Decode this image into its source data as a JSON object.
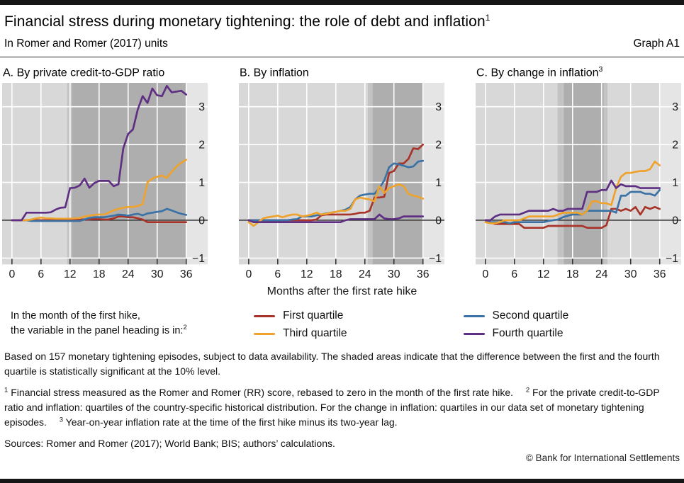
{
  "header": {
    "title": "Financial stress during monetary tightening: the role of debt and inflation",
    "title_sup": "1",
    "subtitle": "In Romer and Romer (2017) units",
    "graph_label": "Graph A1"
  },
  "colors": {
    "red": "#a83429",
    "blue": "#3a72a6",
    "orange": "#efa22c",
    "purple": "#5e2f82",
    "plot_bg": "#d8d8d8",
    "strip_bg": "#e5e5e5",
    "shade_dark": "#aeaeae",
    "shade_light": "#c3c3c3",
    "grid": "#ffffff",
    "axis": "#1a1a1a",
    "tick": "#333333",
    "text": "#1a1a1a"
  },
  "x_axis_label": "Months after the first rate hike",
  "legend": {
    "note_line1": "In the month of the first hike,",
    "note_line2": "the variable in the panel heading is in:",
    "note_sup": "2",
    "items": [
      {
        "label": "First quartile",
        "color": "red"
      },
      {
        "label": "Third quartile",
        "color": "orange"
      },
      {
        "label": "Second quartile",
        "color": "blue"
      },
      {
        "label": "Fourth quartile",
        "color": "purple"
      }
    ]
  },
  "notes": {
    "base": "Based on 157 monetary tightening episodes, subject to data availability. The shaded areas indicate that the difference between the first and the fourth quartile is statistically significant at the 10% level.",
    "fn1_sup": "1",
    "fn1_text": "Financial stress measured as the Romer and Romer (RR) score, rebased to zero in the month of the first rate hike.",
    "fn2_sup": "2",
    "fn2_text": "For the private credit-to-GDP ratio and inflation: quartiles of the country-specific historical distribution. For the change in inflation: quartiles in our data set of monetary tightening episodes.",
    "fn3_sup": "3",
    "fn3_text": "Year-on-year inflation rate at the time of the first hike minus its two-year lag.",
    "sources": "Sources: Romer and Romer (2017); World Bank; BIS; authors’ calculations.",
    "copyright": "© Bank for International Settlements"
  },
  "chart_data": [
    {
      "type": "line",
      "title": "A. By private credit-to-GDP ratio",
      "title_sup": "",
      "x_start": 0,
      "x_end": 36,
      "x_ticks": [
        0,
        6,
        12,
        18,
        24,
        30,
        36
      ],
      "ylim": [
        -1.15,
        3.65
      ],
      "yticks": [
        -1,
        0,
        1,
        2,
        3
      ],
      "ytick_labels": [
        "−1",
        "0",
        "1",
        "2",
        "3"
      ],
      "grid": true,
      "shade_bands": [
        {
          "from": 11.4,
          "to": 12.4,
          "tone": "light"
        },
        {
          "from": 12.4,
          "to": 36,
          "tone": "dark"
        }
      ],
      "series": [
        {
          "name": "First quartile",
          "color": "red",
          "values": [
            0,
            0,
            0,
            0,
            0,
            0,
            0,
            0,
            0,
            0,
            0,
            0,
            0,
            0,
            0.02,
            0.02,
            0.02,
            0.03,
            0.03,
            0.02,
            0.02,
            0.05,
            0.1,
            0.1,
            0.08,
            0.08,
            0.05,
            0.02,
            -0.05,
            -0.05,
            -0.05,
            -0.05,
            -0.05,
            -0.05,
            -0.05,
            -0.05,
            -0.05
          ]
        },
        {
          "name": "Second quartile",
          "color": "blue",
          "values": [
            0,
            0,
            0,
            0,
            -0.02,
            -0.02,
            -0.02,
            -0.02,
            -0.02,
            -0.02,
            -0.02,
            -0.02,
            -0.02,
            -0.02,
            -0.02,
            0.02,
            0.06,
            0.08,
            0.08,
            0.08,
            0.1,
            0.12,
            0.15,
            0.14,
            0.12,
            0.15,
            0.17,
            0.13,
            0.18,
            0.2,
            0.22,
            0.24,
            0.3,
            0.26,
            0.21,
            0.17,
            0.14
          ]
        },
        {
          "name": "Third quartile",
          "color": "orange",
          "values": [
            0,
            0,
            0,
            0,
            0.02,
            0.05,
            0.07,
            0.05,
            0.05,
            0.04,
            0.04,
            0.04,
            0.04,
            0.05,
            0.06,
            0.1,
            0.12,
            0.14,
            0.15,
            0.15,
            0.2,
            0.26,
            0.3,
            0.33,
            0.35,
            0.35,
            0.38,
            0.42,
            1,
            1.1,
            1.15,
            1.18,
            1.12,
            1.28,
            1.42,
            1.52,
            1.6
          ]
        },
        {
          "name": "Fourth quartile",
          "color": "purple",
          "values": [
            0,
            0,
            0,
            0.2,
            0.2,
            0.2,
            0.2,
            0.2,
            0.21,
            0.28,
            0.33,
            0.34,
            0.85,
            0.86,
            0.92,
            1.1,
            0.86,
            0.98,
            1.04,
            1.04,
            1.04,
            0.9,
            0.95,
            1.9,
            2.28,
            2.4,
            2.93,
            3.28,
            3.1,
            3.48,
            3.3,
            3.28,
            3.55,
            3.38,
            3.4,
            3.42,
            3.32
          ]
        }
      ]
    },
    {
      "type": "line",
      "title": "B. By inflation",
      "title_sup": "",
      "x_start": 0,
      "x_end": 36,
      "x_ticks": [
        0,
        6,
        12,
        18,
        24,
        30,
        36
      ],
      "ylim": [
        -1.15,
        3.65
      ],
      "yticks": [
        -1,
        0,
        1,
        2,
        3
      ],
      "ytick_labels": [
        "−1",
        "0",
        "1",
        "2",
        "3"
      ],
      "grid": true,
      "shade_bands": [
        {
          "from": 24.6,
          "to": 25.6,
          "tone": "light"
        },
        {
          "from": 25.6,
          "to": 36,
          "tone": "dark"
        }
      ],
      "series": [
        {
          "name": "First quartile",
          "color": "red",
          "values": [
            0,
            0,
            0,
            0,
            0,
            0,
            0,
            0,
            0,
            0,
            0,
            0,
            0,
            0,
            0.02,
            0.13,
            0.15,
            0.15,
            0.15,
            0.15,
            0.15,
            0.15,
            0.17,
            0.2,
            0.2,
            0.25,
            0.6,
            0.6,
            0.62,
            1.25,
            1.3,
            1.5,
            1.5,
            1.62,
            1.9,
            1.88,
            2
          ]
        },
        {
          "name": "Second quartile",
          "color": "blue",
          "values": [
            0,
            0,
            0,
            0,
            0,
            0,
            0,
            0,
            0,
            0.02,
            0.03,
            0.1,
            0.1,
            0.1,
            0.13,
            0.15,
            0.18,
            0.2,
            0.22,
            0.25,
            0.28,
            0.35,
            0.55,
            0.65,
            0.68,
            0.7,
            0.7,
            0.85,
            1.05,
            1.4,
            1.5,
            1.48,
            1.44,
            1.4,
            1.42,
            1.55,
            1.57
          ]
        },
        {
          "name": "Third quartile",
          "color": "orange",
          "values": [
            -0.05,
            -0.15,
            -0.05,
            0.05,
            0.08,
            0.1,
            0.12,
            0.08,
            0.12,
            0.15,
            0.15,
            0.1,
            0.12,
            0.15,
            0.2,
            0.15,
            0.17,
            0.2,
            0.22,
            0.25,
            0.25,
            0.3,
            0.55,
            0.6,
            0.57,
            0.55,
            0.5,
            0.9,
            0.72,
            0.85,
            0.9,
            0.95,
            0.9,
            0.7,
            0.65,
            0.62,
            0.57
          ]
        },
        {
          "name": "Fourth quartile",
          "color": "purple",
          "values": [
            0,
            -0.05,
            -0.05,
            -0.05,
            -0.05,
            -0.05,
            -0.05,
            -0.05,
            -0.05,
            -0.05,
            -0.05,
            -0.05,
            -0.05,
            -0.05,
            -0.05,
            -0.05,
            -0.05,
            -0.05,
            -0.05,
            -0.05,
            0,
            0.03,
            0.03,
            0.03,
            0.03,
            0.03,
            0.03,
            0.15,
            0.05,
            0.03,
            0.03,
            0.05,
            0.1,
            0.1,
            0.1,
            0.1,
            0.1
          ]
        }
      ]
    },
    {
      "type": "line",
      "title": "C. By change in inflation",
      "title_sup": "3",
      "x_start": 0,
      "x_end": 36,
      "x_ticks": [
        0,
        6,
        12,
        18,
        24,
        30,
        36
      ],
      "ylim": [
        -1.15,
        3.65
      ],
      "yticks": [
        -1,
        0,
        1,
        2,
        3
      ],
      "ytick_labels": [
        "−1",
        "0",
        "1",
        "2",
        "3"
      ],
      "grid": true,
      "shade_bands": [
        {
          "from": 14.9,
          "to": 16.2,
          "tone": "light"
        },
        {
          "from": 16.2,
          "to": 24.4,
          "tone": "dark"
        },
        {
          "from": 24.4,
          "to": 25.2,
          "tone": "light"
        }
      ],
      "series": [
        {
          "name": "First quartile",
          "color": "red",
          "values": [
            0,
            -0.05,
            -0.1,
            -0.1,
            -0.1,
            -0.1,
            -0.1,
            -0.1,
            -0.2,
            -0.2,
            -0.2,
            -0.2,
            -0.2,
            -0.15,
            -0.15,
            -0.15,
            -0.15,
            -0.15,
            -0.15,
            -0.15,
            -0.15,
            -0.2,
            -0.2,
            -0.2,
            -0.2,
            -0.13,
            0.3,
            0.3,
            0.25,
            0.3,
            0.25,
            0.35,
            0.15,
            0.35,
            0.3,
            0.35,
            0.3
          ]
        },
        {
          "name": "Second quartile",
          "color": "blue",
          "values": [
            0,
            -0.05,
            -0.05,
            -0.05,
            -0.05,
            -0.08,
            -0.05,
            -0.05,
            -0.05,
            -0.05,
            -0.05,
            -0.05,
            -0.05,
            -0.02,
            0,
            0.02,
            0.08,
            0.12,
            0.15,
            0.15,
            0.15,
            0.25,
            0.25,
            0.25,
            0.25,
            0.25,
            0.25,
            0.2,
            0.65,
            0.65,
            0.75,
            0.75,
            0.75,
            0.7,
            0.7,
            0.65,
            0.8
          ]
        },
        {
          "name": "Third quartile",
          "color": "orange",
          "values": [
            -0.05,
            -0.08,
            -0.08,
            -0.05,
            0,
            0,
            0,
            0,
            0.05,
            0.1,
            0.1,
            0.1,
            0.1,
            0.1,
            0.1,
            0.15,
            0.2,
            0.2,
            0.2,
            0.2,
            0.15,
            0.25,
            0.5,
            0.5,
            0.45,
            0.45,
            0.4,
            0.85,
            1.15,
            1.25,
            1.25,
            1.28,
            1.3,
            1.3,
            1.35,
            1.55,
            1.45
          ]
        },
        {
          "name": "Fourth quartile",
          "color": "purple",
          "values": [
            0,
            0,
            0.1,
            0.15,
            0.15,
            0.15,
            0.15,
            0.15,
            0.2,
            0.25,
            0.25,
            0.25,
            0.25,
            0.25,
            0.3,
            0.25,
            0.25,
            0.3,
            0.3,
            0.3,
            0.3,
            0.75,
            0.75,
            0.75,
            0.8,
            0.8,
            1.05,
            0.85,
            0.95,
            0.9,
            0.9,
            0.9,
            0.85,
            0.85,
            0.85,
            0.85,
            0.85
          ]
        }
      ]
    }
  ]
}
